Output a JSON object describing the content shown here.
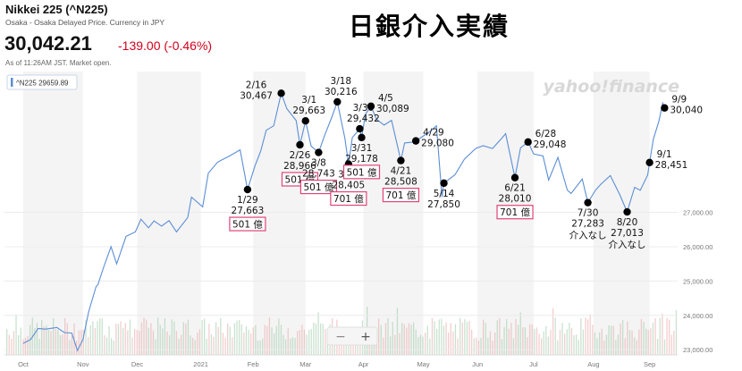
{
  "header": {
    "ticker_title": "Nikkei 225 (^N225)",
    "subtitle": "Osaka - Osaka Delayed Price. Currency in JPY",
    "price": "30,042.21",
    "change": "-139.00 (-0.46%)",
    "as_of": "As of 11:26AM JST. Market open.",
    "headline": "日銀介入実績",
    "change_color": "#d0021b"
  },
  "legend_label": "^N225 29659.89",
  "watermark": "yahoo!finance",
  "zoom": {
    "minus": "−",
    "plus": "+"
  },
  "chart_data": {
    "type": "line",
    "series": [
      {
        "values": [
          [
            "2020-10-01",
            23185
          ],
          [
            "2020-10-05",
            23300
          ],
          [
            "2020-10-09",
            23620
          ],
          [
            "2020-10-13",
            23600
          ],
          [
            "2020-10-19",
            23650
          ],
          [
            "2020-10-23",
            23500
          ],
          [
            "2020-10-27",
            23485
          ],
          [
            "2020-10-30",
            22977
          ],
          [
            "2020-11-02",
            23300
          ],
          [
            "2020-11-05",
            24100
          ],
          [
            "2020-11-09",
            24840
          ],
          [
            "2020-11-10",
            24900
          ],
          [
            "2020-11-13",
            25400
          ],
          [
            "2020-11-17",
            26000
          ],
          [
            "2020-11-20",
            25500
          ],
          [
            "2020-11-25",
            26300
          ],
          [
            "2020-11-30",
            26430
          ],
          [
            "2020-12-03",
            26800
          ],
          [
            "2020-12-07",
            26550
          ],
          [
            "2020-12-10",
            26750
          ],
          [
            "2020-12-14",
            26600
          ],
          [
            "2020-12-18",
            26760
          ],
          [
            "2020-12-22",
            26430
          ],
          [
            "2020-12-28",
            26850
          ],
          [
            "2020-12-30",
            27444
          ],
          [
            "2021-01-05",
            27160
          ],
          [
            "2021-01-08",
            28140
          ],
          [
            "2021-01-13",
            28460
          ],
          [
            "2021-01-15",
            28520
          ],
          [
            "2021-01-19",
            28630
          ],
          [
            "2021-01-25",
            28820
          ],
          [
            "2021-01-29",
            27663
          ],
          [
            "2021-02-02",
            28360
          ],
          [
            "2021-02-05",
            28780
          ],
          [
            "2021-02-08",
            29390
          ],
          [
            "2021-02-12",
            29520
          ],
          [
            "2021-02-16",
            30467
          ],
          [
            "2021-02-19",
            30020
          ],
          [
            "2021-02-24",
            29670
          ],
          [
            "2021-02-26",
            28966
          ],
          [
            "2021-03-01",
            29663
          ],
          [
            "2021-03-04",
            28930
          ],
          [
            "2021-03-08",
            28743
          ],
          [
            "2021-03-11",
            29210
          ],
          [
            "2021-03-15",
            29760
          ],
          [
            "2021-03-18",
            30216
          ],
          [
            "2021-03-22",
            29170
          ],
          [
            "2021-03-24",
            28405
          ],
          [
            "2021-03-26",
            29180
          ],
          [
            "2021-03-30",
            29432
          ],
          [
            "2021-03-31",
            29178
          ],
          [
            "2021-04-02",
            29850
          ],
          [
            "2021-04-05",
            30089
          ],
          [
            "2021-04-08",
            29710
          ],
          [
            "2021-04-12",
            29540
          ],
          [
            "2021-04-16",
            29680
          ],
          [
            "2021-04-21",
            28508
          ],
          [
            "2021-04-23",
            29020
          ],
          [
            "2021-04-28",
            29050
          ],
          [
            "2021-04-29",
            29080
          ],
          [
            "2021-05-06",
            29330
          ],
          [
            "2021-05-10",
            29520
          ],
          [
            "2021-05-13",
            27448
          ],
          [
            "2021-05-14",
            27850
          ],
          [
            "2021-05-20",
            28100
          ],
          [
            "2021-05-25",
            28550
          ],
          [
            "2021-05-31",
            28860
          ],
          [
            "2021-06-04",
            28940
          ],
          [
            "2021-06-09",
            28860
          ],
          [
            "2021-06-14",
            29160
          ],
          [
            "2021-06-16",
            29290
          ],
          [
            "2021-06-21",
            28010
          ],
          [
            "2021-06-24",
            28880
          ],
          [
            "2021-06-28",
            29048
          ],
          [
            "2021-07-01",
            28700
          ],
          [
            "2021-07-06",
            28640
          ],
          [
            "2021-07-09",
            27940
          ],
          [
            "2021-07-14",
            28600
          ],
          [
            "2021-07-19",
            27650
          ],
          [
            "2021-07-21",
            27550
          ],
          [
            "2021-07-27",
            27970
          ],
          [
            "2021-07-30",
            27283
          ],
          [
            "2021-08-03",
            27640
          ],
          [
            "2021-08-06",
            27820
          ],
          [
            "2021-08-11",
            28070
          ],
          [
            "2021-08-16",
            27520
          ],
          [
            "2021-08-20",
            27013
          ],
          [
            "2021-08-24",
            27730
          ],
          [
            "2021-08-27",
            27640
          ],
          [
            "2021-08-31",
            28090
          ],
          [
            "2021-09-01",
            28451
          ],
          [
            "2021-09-03",
            29128
          ],
          [
            "2021-09-06",
            29660
          ],
          [
            "2021-09-08",
            30180
          ],
          [
            "2021-09-09",
            30040
          ]
        ]
      }
    ],
    "x_ticks": [
      {
        "date": "2020-10-01",
        "label": "Oct"
      },
      {
        "date": "2020-11-02",
        "label": "Nov"
      },
      {
        "date": "2020-12-01",
        "label": "Dec"
      },
      {
        "date": "2021-01-04",
        "label": "2021"
      },
      {
        "date": "2021-02-01",
        "label": "Feb"
      },
      {
        "date": "2021-03-01",
        "label": "Mar"
      },
      {
        "date": "2021-04-01",
        "label": "Apr"
      },
      {
        "date": "2021-05-03",
        "label": "May"
      },
      {
        "date": "2021-06-01",
        "label": "Jun"
      },
      {
        "date": "2021-07-01",
        "label": "Jul"
      },
      {
        "date": "2021-08-02",
        "label": "Aug"
      },
      {
        "date": "2021-09-01",
        "label": "Sep"
      }
    ],
    "y_ticks": [
      "23,000.00",
      "24,000.00",
      "25,000.00",
      "26,000.00",
      "27,000.00"
    ],
    "y_tick_values": [
      23000,
      24000,
      25000,
      26000,
      27000
    ],
    "ylim": [
      22850,
      31100
    ],
    "xlim": [
      "2020-09-21",
      "2021-09-16"
    ],
    "grid": "alternating vertical bands",
    "line_color": "#5b8ed6",
    "annotations": [
      {
        "date": "2021-01-29",
        "value": 27663,
        "date_label": "1/29",
        "value_label": "27,663",
        "note": "501 億",
        "pos": "below"
      },
      {
        "date": "2021-02-16",
        "value": 30467,
        "date_label": "2/16",
        "value_label": "30,467",
        "note": "",
        "pos": "left"
      },
      {
        "date": "2021-02-26",
        "value": 28966,
        "date_label": "2/26",
        "value_label": "28,966",
        "note": "501 億",
        "pos": "below"
      },
      {
        "date": "2021-03-01",
        "value": 29663,
        "date_label": "3/1",
        "value_label": "29,663",
        "note": "",
        "pos": "above"
      },
      {
        "date": "2021-03-08",
        "value": 28743,
        "date_label": "3/8",
        "value_label": "28,743",
        "note": "501 億",
        "pos": "below"
      },
      {
        "date": "2021-03-18",
        "value": 30216,
        "date_label": "3/18",
        "value_label": "30,216",
        "note": "",
        "pos": "above"
      },
      {
        "date": "2021-03-24",
        "value": 28405,
        "date_label": "3/24",
        "value_label": "28,405",
        "note": "701 億",
        "pos": "below"
      },
      {
        "date": "2021-03-30",
        "value": 29432,
        "date_label": "3/30",
        "value_label": "29,432",
        "note": "",
        "pos": "above"
      },
      {
        "date": "2021-03-31",
        "value": 29178,
        "date_label": "3/31",
        "value_label": "29,178",
        "note": "501 億",
        "pos": "below"
      },
      {
        "date": "2021-04-05",
        "value": 30089,
        "date_label": "4/5",
        "value_label": "30,089",
        "note": "",
        "pos": "right"
      },
      {
        "date": "2021-04-21",
        "value": 28508,
        "date_label": "4/21",
        "value_label": "28,508",
        "note": "701 億",
        "pos": "below"
      },
      {
        "date": "2021-04-29",
        "value": 29080,
        "date_label": "4/29",
        "value_label": "29,080",
        "note": "",
        "pos": "right"
      },
      {
        "date": "2021-05-14",
        "value": 27850,
        "date_label": "5/14",
        "value_label": "27,850",
        "note": "",
        "pos": "below"
      },
      {
        "date": "2021-06-21",
        "value": 28010,
        "date_label": "6/21",
        "value_label": "28,010",
        "note": "701 億",
        "pos": "below"
      },
      {
        "date": "2021-06-28",
        "value": 29048,
        "date_label": "6/28",
        "value_label": "29,048",
        "note": "",
        "pos": "right"
      },
      {
        "date": "2021-07-30",
        "value": 27283,
        "date_label": "7/30",
        "value_label": "27,283",
        "note": "介入なし",
        "pos": "below-plain"
      },
      {
        "date": "2021-08-20",
        "value": 27013,
        "date_label": "8/20",
        "value_label": "27,013",
        "note": "介入なし",
        "pos": "below-plain"
      },
      {
        "date": "2021-09-01",
        "value": 28451,
        "date_label": "9/1",
        "value_label": "28,451",
        "note": "",
        "pos": "right"
      },
      {
        "date": "2021-09-09",
        "value": 30040,
        "date_label": "9/9",
        "value_label": "30,040",
        "note": "",
        "pos": "right"
      }
    ]
  }
}
